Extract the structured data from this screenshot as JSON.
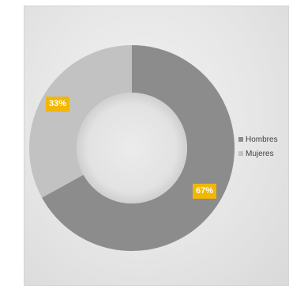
{
  "chart_data": {
    "type": "pie",
    "donut": true,
    "title": "",
    "categories": [
      "Hombres",
      "Mujeres"
    ],
    "values": [
      67,
      33
    ],
    "data_labels": [
      "67%",
      "33%"
    ],
    "colors": [
      "#8c8c8c",
      "#c2c2c2"
    ],
    "label_color": "#f2b705",
    "legend_position": "right",
    "legend": [
      {
        "name": "Hombres",
        "color": "#8c8c8c"
      },
      {
        "name": "Mujeres",
        "color": "#c2c2c2"
      }
    ]
  }
}
